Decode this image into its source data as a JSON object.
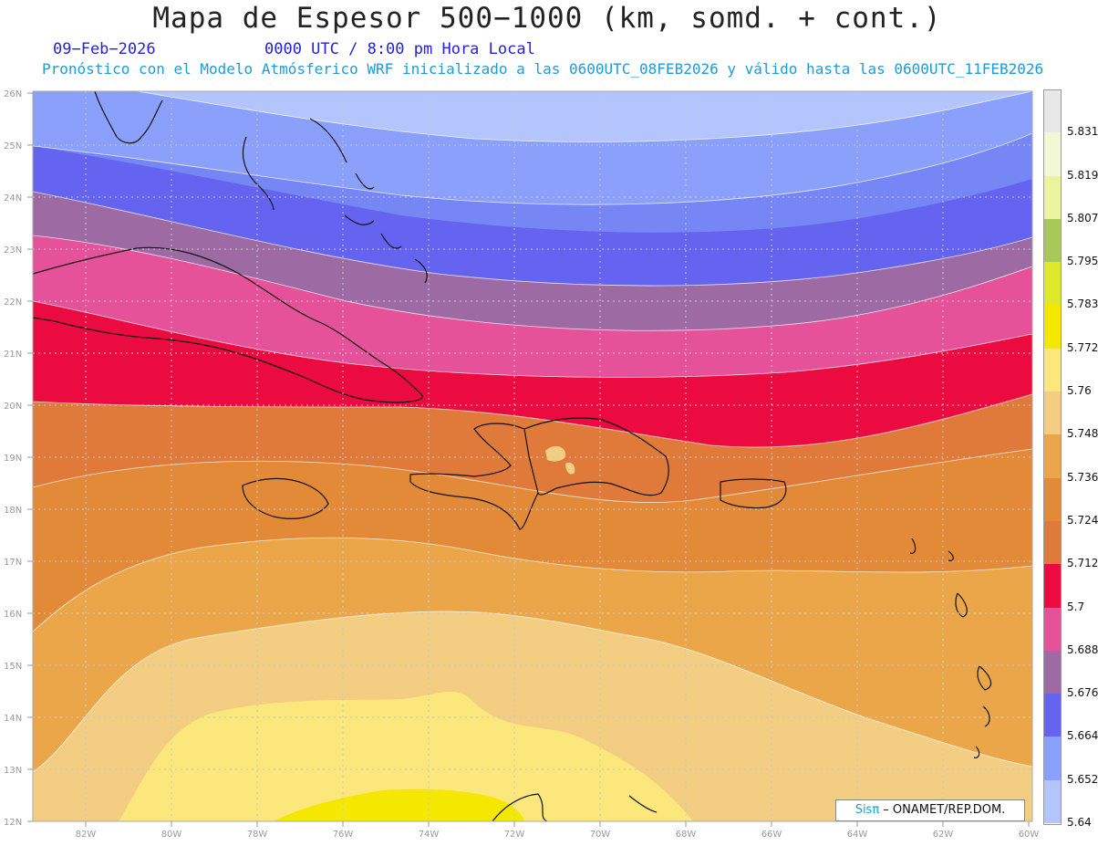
{
  "title": "Mapa de Espesor 500−1000 (km, somd. + cont.)",
  "date": "09−Feb−2026",
  "time": "0000 UTC / 8:00 pm Hora Local",
  "subtitle": "Pronóstico con el Modelo Atmósferico WRF inicializado a las 0600UTC_08FEB2026 y válido hasta las  0600UTC_11FEB2026",
  "lat_labels": [
    "26N",
    "25N",
    "24N",
    "23N",
    "22N",
    "21N",
    "20N",
    "19N",
    "18N",
    "17N",
    "16N",
    "15N",
    "14N",
    "13N",
    "12N"
  ],
  "lon_labels": [
    "82W",
    "80W",
    "78W",
    "76W",
    "74W",
    "72W",
    "70W",
    "68W",
    "66W",
    "64W",
    "62W",
    "60W"
  ],
  "colorbar": {
    "levels": [
      "5.831",
      "5.819",
      "5.807",
      "5.795",
      "5.783",
      "5.772",
      "5.76",
      "5.748",
      "5.736",
      "5.724",
      "5.712",
      "5.7",
      "5.688",
      "5.676",
      "5.664",
      "5.652",
      "5.64"
    ],
    "colors": [
      "#e8e8e8",
      "#f2f7d6",
      "#e8f4a0",
      "#a8c85a",
      "#e0e82c",
      "#f5e800",
      "#fce77c",
      "#f2cd82",
      "#eba64a",
      "#e28a38",
      "#df7a3a",
      "#ec0b41",
      "#e6529a",
      "#9e6aa4",
      "#6464f0",
      "#8aa0fa",
      "#b4c4fc"
    ]
  },
  "credit": {
    "brand": "Sisπ",
    "text": " – ONAMET/REP.DOM."
  }
}
